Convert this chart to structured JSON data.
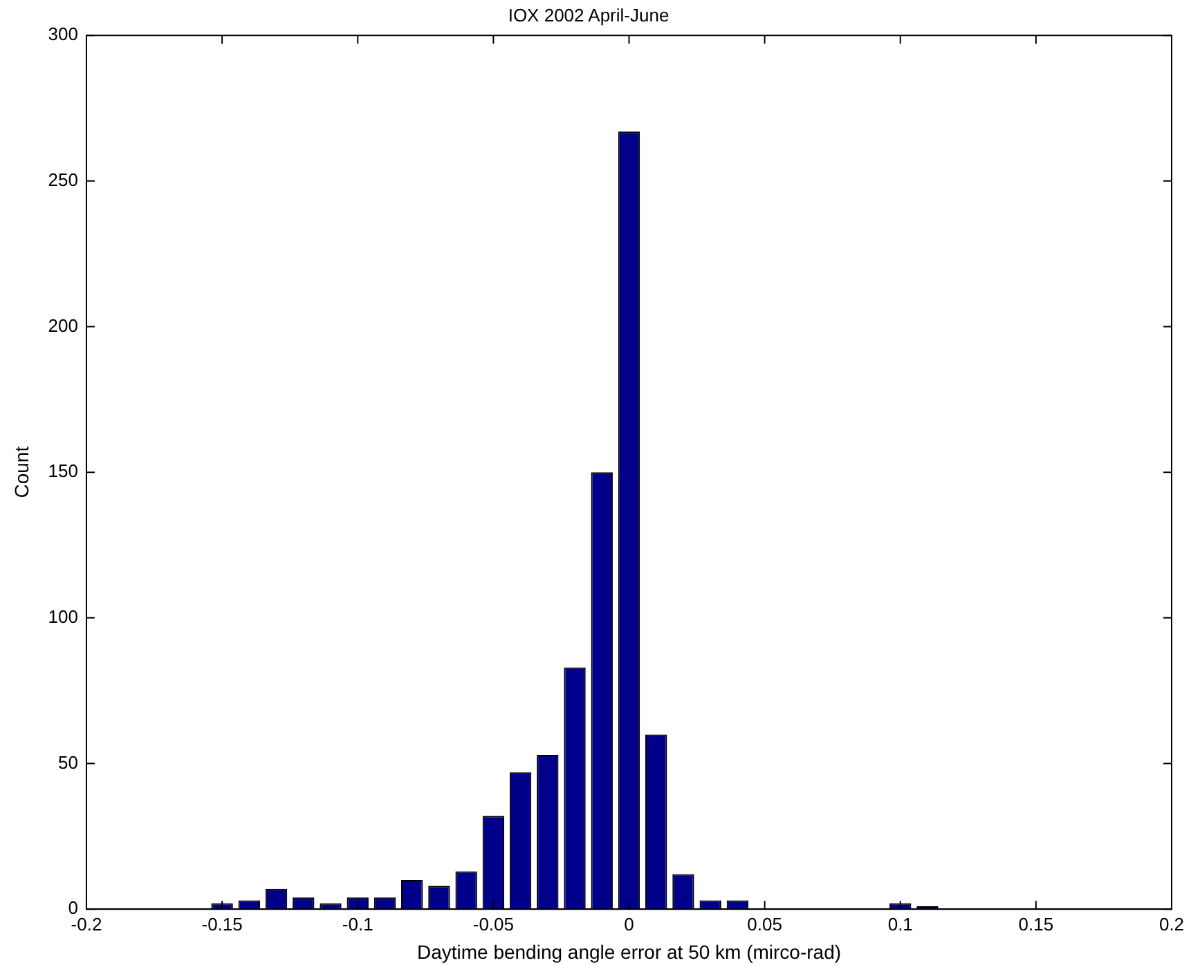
{
  "chart_data": {
    "type": "histogram",
    "title": "IOX 2002 April-June",
    "xlabel": "Daytime bending angle error at 50 km (mirco-rad)",
    "ylabel": "Count",
    "bins": [
      -0.155,
      -0.145,
      -0.135,
      -0.125,
      -0.115,
      -0.105,
      -0.095,
      -0.085,
      -0.075,
      -0.065,
      -0.055,
      -0.045,
      -0.035,
      -0.025,
      -0.015,
      -0.005,
      0.005,
      0.015,
      0.025,
      0.035,
      0.045,
      0.055,
      0.065,
      0.075,
      0.085,
      0.095,
      0.105,
      0.115
    ],
    "values": [
      2,
      3,
      7,
      4,
      2,
      4,
      4,
      10,
      8,
      13,
      32,
      47,
      53,
      83,
      150,
      267,
      60,
      12,
      3,
      3,
      0,
      0,
      0,
      0,
      0,
      2,
      1
    ],
    "color": "#00008b",
    "xlim": [
      -0.2,
      0.2
    ],
    "xticks": [
      -0.2,
      -0.15,
      -0.1,
      -0.05,
      0,
      0.05,
      0.1,
      0.15,
      0.2
    ],
    "ylim": [
      0,
      300
    ],
    "yticks": [
      0,
      50,
      100,
      150,
      200,
      250,
      300
    ],
    "grid": false,
    "legend": false
  }
}
